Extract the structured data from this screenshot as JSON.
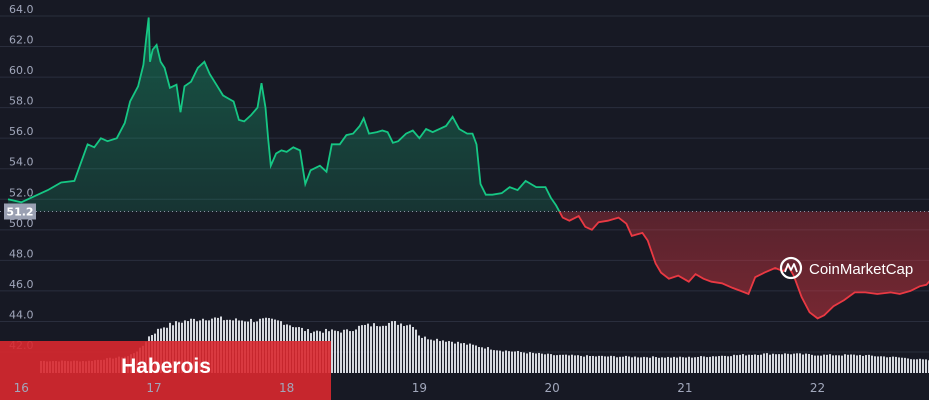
{
  "chart_data": {
    "type": "area",
    "ylim": [
      41.5,
      64.2
    ],
    "xlim": [
      15.9,
      22.9
    ],
    "grid": true,
    "y_ticks": [
      "64.0",
      "62.0",
      "60.0",
      "58.0",
      "56.0",
      "54.0",
      "52.0",
      "50.0",
      "48.0",
      "46.0",
      "44.0",
      "42.0"
    ],
    "x_ticks": [
      "16",
      "17",
      "18",
      "19",
      "20",
      "21",
      "22"
    ],
    "reference_line": {
      "value": 51.2,
      "label": "51.2"
    },
    "series": [
      {
        "values_above_ref_color": "#16c784",
        "values_below_ref_color": "#ea3943",
        "points": [
          [
            15.9,
            52.0
          ],
          [
            16.0,
            51.8
          ],
          [
            16.1,
            52.2
          ],
          [
            16.2,
            52.6
          ],
          [
            16.3,
            53.1
          ],
          [
            16.4,
            53.2
          ],
          [
            16.45,
            54.4
          ],
          [
            16.5,
            55.6
          ],
          [
            16.55,
            55.4
          ],
          [
            16.6,
            56.0
          ],
          [
            16.65,
            55.8
          ],
          [
            16.72,
            56.0
          ],
          [
            16.78,
            57.0
          ],
          [
            16.82,
            58.4
          ],
          [
            16.88,
            59.4
          ],
          [
            16.92,
            60.8
          ],
          [
            16.94,
            62.4
          ],
          [
            16.96,
            63.9
          ],
          [
            16.97,
            61.0
          ],
          [
            16.99,
            61.8
          ],
          [
            17.02,
            62.1
          ],
          [
            17.05,
            61.0
          ],
          [
            17.08,
            60.6
          ],
          [
            17.12,
            59.3
          ],
          [
            17.17,
            59.5
          ],
          [
            17.2,
            57.7
          ],
          [
            17.23,
            59.4
          ],
          [
            17.28,
            59.7
          ],
          [
            17.33,
            60.6
          ],
          [
            17.38,
            61.0
          ],
          [
            17.42,
            60.2
          ],
          [
            17.47,
            59.5
          ],
          [
            17.52,
            58.8
          ],
          [
            17.56,
            58.6
          ],
          [
            17.6,
            58.4
          ],
          [
            17.64,
            57.2
          ],
          [
            17.68,
            57.1
          ],
          [
            17.73,
            57.5
          ],
          [
            17.78,
            58.0
          ],
          [
            17.81,
            59.6
          ],
          [
            17.84,
            58.0
          ],
          [
            17.86,
            56.0
          ],
          [
            17.88,
            54.2
          ],
          [
            17.92,
            55.0
          ],
          [
            17.96,
            55.2
          ],
          [
            18.0,
            55.1
          ],
          [
            18.05,
            55.4
          ],
          [
            18.1,
            55.2
          ],
          [
            18.14,
            53.0
          ],
          [
            18.18,
            53.9
          ],
          [
            18.25,
            54.2
          ],
          [
            18.3,
            53.8
          ],
          [
            18.34,
            55.6
          ],
          [
            18.4,
            55.6
          ],
          [
            18.45,
            56.2
          ],
          [
            18.5,
            56.3
          ],
          [
            18.55,
            56.8
          ],
          [
            18.58,
            57.3
          ],
          [
            18.62,
            56.3
          ],
          [
            18.68,
            56.4
          ],
          [
            18.72,
            56.5
          ],
          [
            18.76,
            56.4
          ],
          [
            18.8,
            55.7
          ],
          [
            18.84,
            55.8
          ],
          [
            18.9,
            56.3
          ],
          [
            18.95,
            56.5
          ],
          [
            19.0,
            56.0
          ],
          [
            19.05,
            56.6
          ],
          [
            19.1,
            56.4
          ],
          [
            19.2,
            56.8
          ],
          [
            19.25,
            57.4
          ],
          [
            19.3,
            56.6
          ],
          [
            19.36,
            56.3
          ],
          [
            19.4,
            56.3
          ],
          [
            19.43,
            55.6
          ],
          [
            19.46,
            53.0
          ],
          [
            19.5,
            52.3
          ],
          [
            19.55,
            52.3
          ],
          [
            19.62,
            52.4
          ],
          [
            19.68,
            52.8
          ],
          [
            19.74,
            52.6
          ],
          [
            19.8,
            53.2
          ],
          [
            19.88,
            52.8
          ],
          [
            19.95,
            52.8
          ],
          [
            19.99,
            52.1
          ],
          [
            20.03,
            51.6
          ],
          [
            20.08,
            50.8
          ],
          [
            20.13,
            50.6
          ],
          [
            20.2,
            50.9
          ],
          [
            20.25,
            50.2
          ],
          [
            20.3,
            50.0
          ],
          [
            20.35,
            50.5
          ],
          [
            20.42,
            50.6
          ],
          [
            20.5,
            50.8
          ],
          [
            20.56,
            50.4
          ],
          [
            20.6,
            49.6
          ],
          [
            20.68,
            49.8
          ],
          [
            20.72,
            49.3
          ],
          [
            20.78,
            47.8
          ],
          [
            20.82,
            47.2
          ],
          [
            20.88,
            46.8
          ],
          [
            20.95,
            47.0
          ],
          [
            21.03,
            46.6
          ],
          [
            21.08,
            47.1
          ],
          [
            21.14,
            46.8
          ],
          [
            21.2,
            46.6
          ],
          [
            21.28,
            46.5
          ],
          [
            21.36,
            46.2
          ],
          [
            21.42,
            46.0
          ],
          [
            21.48,
            45.8
          ],
          [
            21.53,
            46.9
          ],
          [
            21.6,
            47.2
          ],
          [
            21.68,
            47.5
          ],
          [
            21.74,
            47.3
          ],
          [
            21.78,
            47.6
          ],
          [
            21.82,
            47.0
          ],
          [
            21.88,
            45.6
          ],
          [
            21.94,
            44.6
          ],
          [
            22.0,
            44.2
          ],
          [
            22.05,
            44.4
          ],
          [
            22.12,
            45.0
          ],
          [
            22.2,
            45.4
          ],
          [
            22.28,
            45.9
          ],
          [
            22.36,
            45.9
          ],
          [
            22.45,
            45.8
          ],
          [
            22.55,
            45.9
          ],
          [
            22.62,
            45.8
          ],
          [
            22.7,
            46.0
          ],
          [
            22.77,
            46.3
          ],
          [
            22.82,
            46.4
          ],
          [
            22.86,
            46.8
          ],
          [
            22.9,
            46.7
          ]
        ]
      }
    ],
    "volume_profile": [
      [
        15.9,
        0.2
      ],
      [
        16.5,
        0.2
      ],
      [
        16.8,
        0.28
      ],
      [
        16.9,
        0.42
      ],
      [
        16.95,
        0.6
      ],
      [
        17.05,
        0.76
      ],
      [
        17.2,
        0.86
      ],
      [
        17.4,
        0.92
      ],
      [
        17.6,
        0.88
      ],
      [
        17.85,
        0.88
      ],
      [
        17.95,
        0.86
      ],
      [
        18.05,
        0.78
      ],
      [
        18.15,
        0.7
      ],
      [
        18.45,
        0.7
      ],
      [
        18.55,
        0.78
      ],
      [
        18.8,
        0.84
      ],
      [
        18.95,
        0.8
      ],
      [
        19.0,
        0.6
      ],
      [
        19.2,
        0.54
      ],
      [
        19.4,
        0.46
      ],
      [
        19.6,
        0.38
      ],
      [
        19.8,
        0.34
      ],
      [
        20.0,
        0.3
      ],
      [
        20.3,
        0.28
      ],
      [
        20.6,
        0.27
      ],
      [
        21.0,
        0.26
      ],
      [
        21.4,
        0.3
      ],
      [
        21.6,
        0.32
      ],
      [
        21.8,
        0.32
      ],
      [
        22.0,
        0.3
      ],
      [
        22.3,
        0.3
      ],
      [
        22.6,
        0.26
      ],
      [
        22.9,
        0.2
      ]
    ],
    "watermark": "CoinMarketCap",
    "overlay_label": "Haberois"
  }
}
